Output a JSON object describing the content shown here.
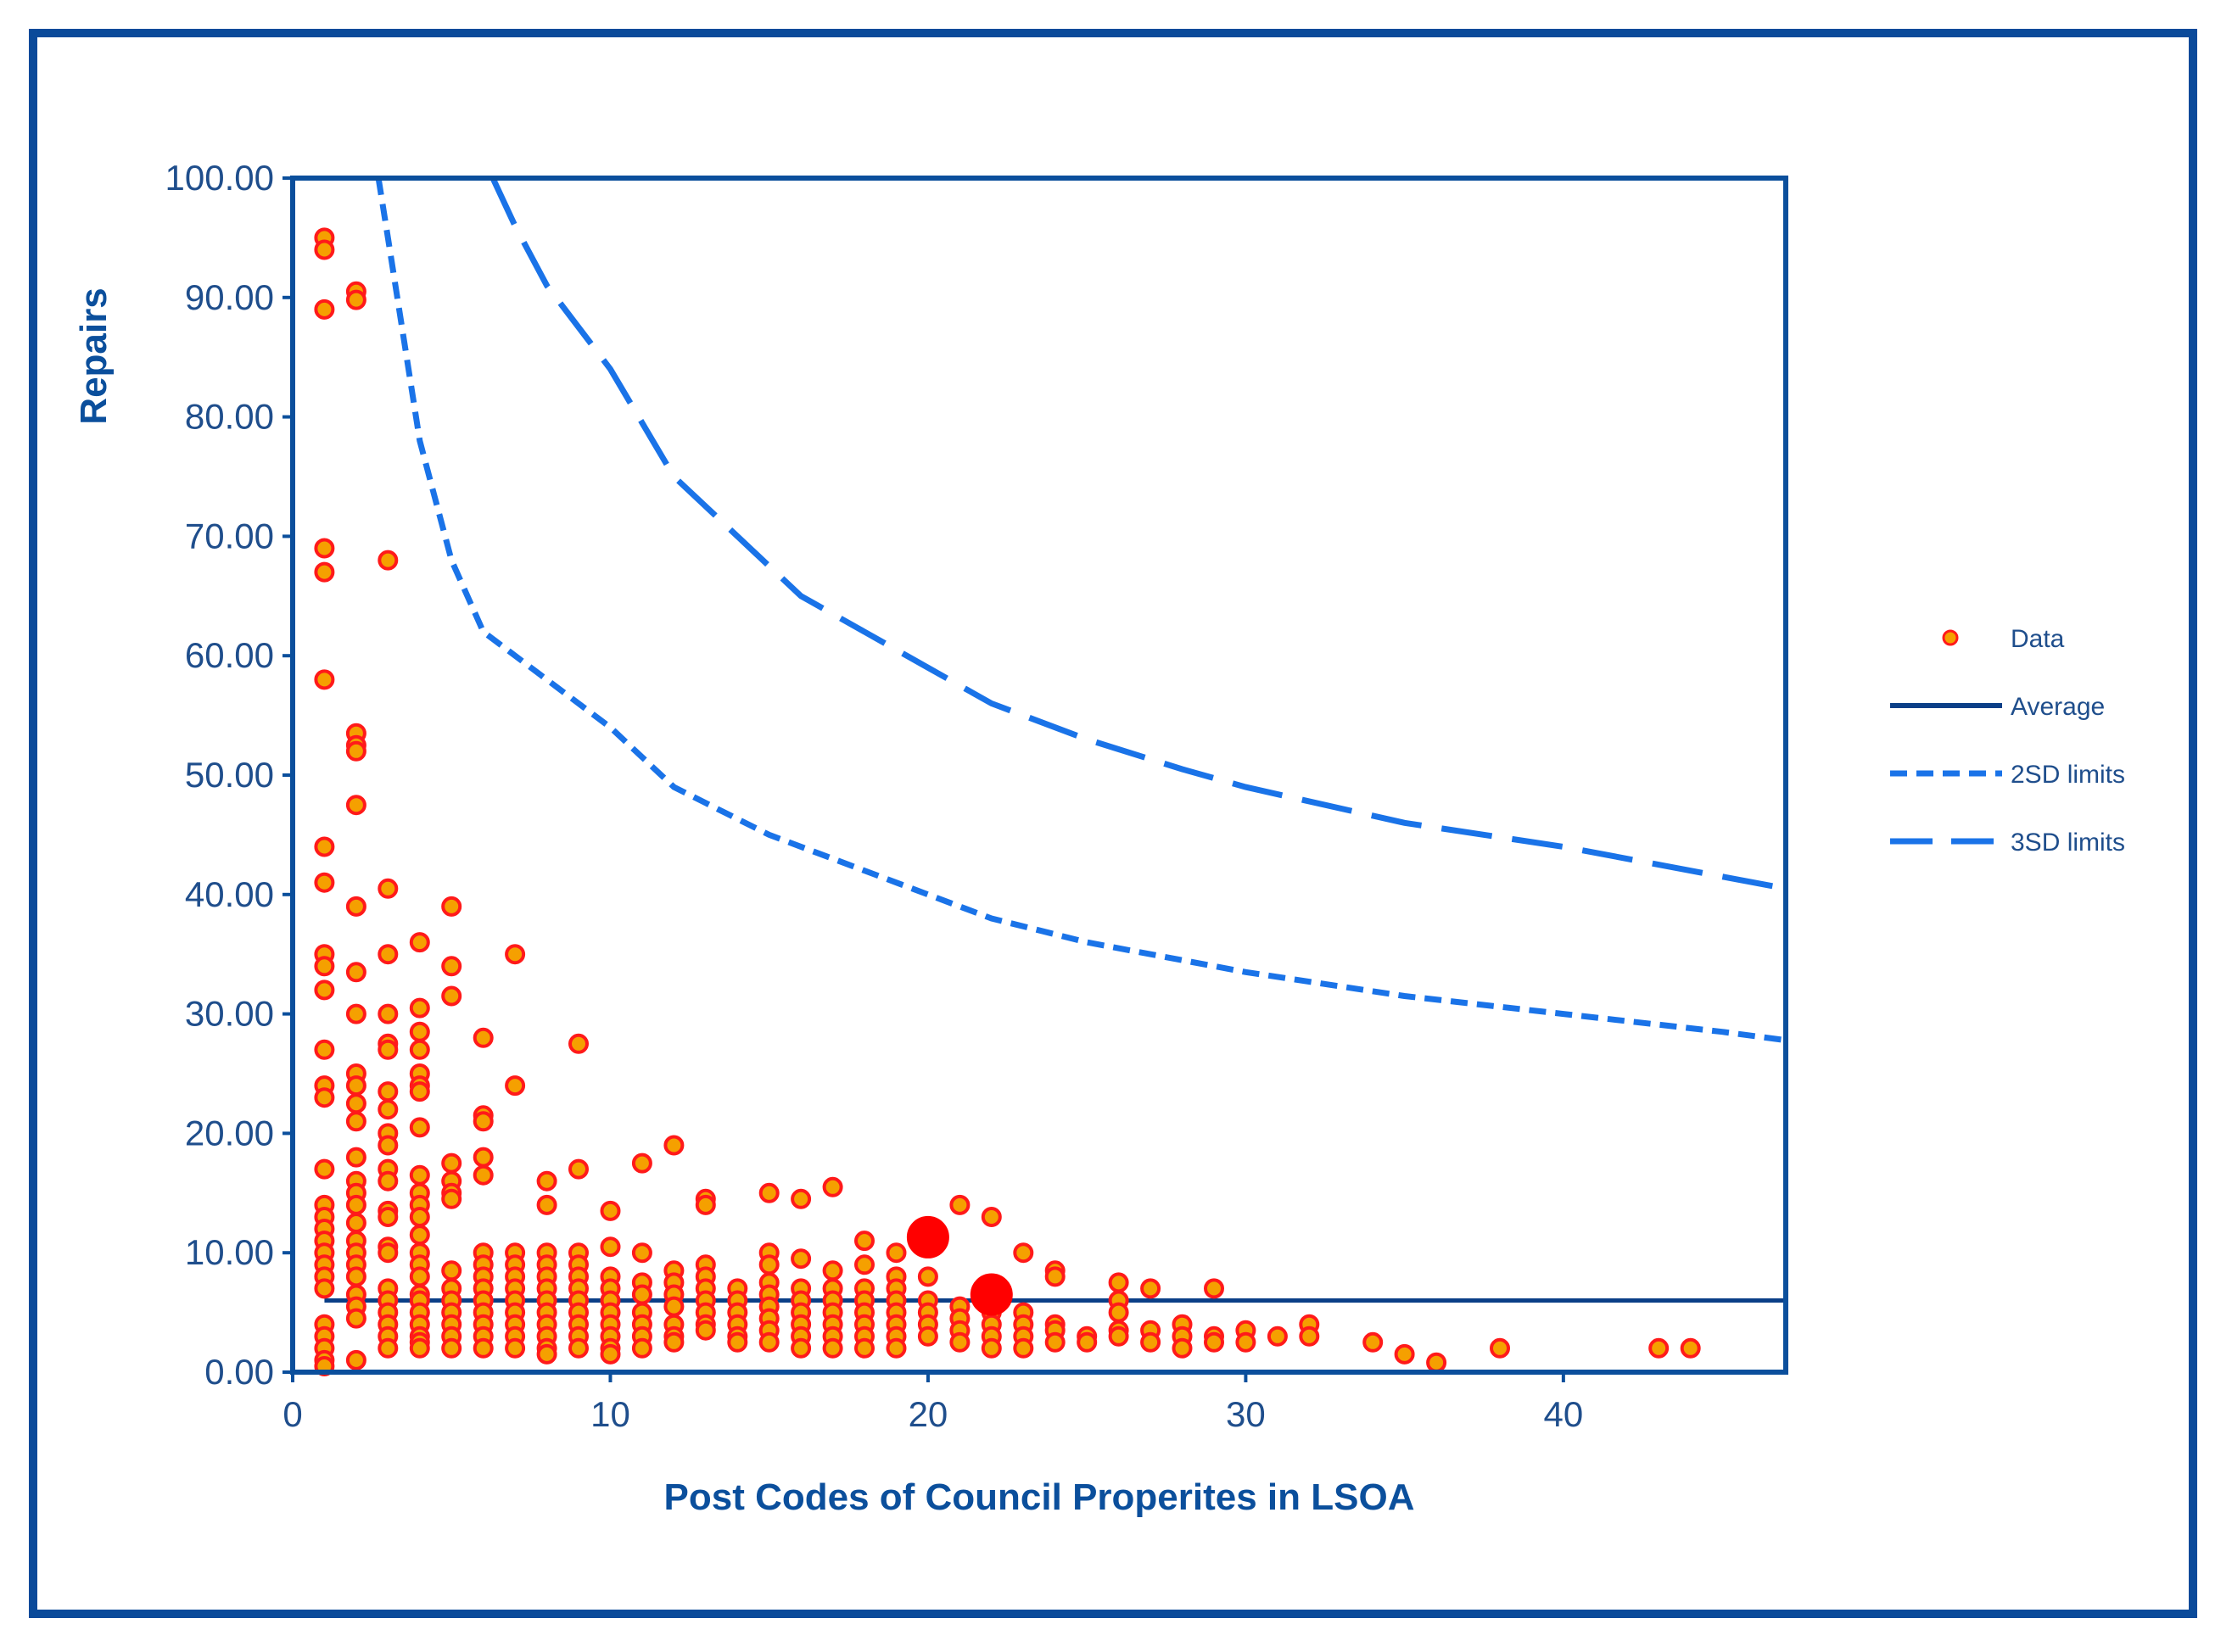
{
  "chart_data": {
    "type": "scatter",
    "title": "",
    "xlabel": "Post Codes of Council Properites in LSOA",
    "ylabel": "Repairs",
    "xlim": [
      0,
      47
    ],
    "ylim": [
      0,
      100
    ],
    "x_ticks": [
      0,
      10,
      20,
      30,
      40
    ],
    "x_tick_labels": [
      "0",
      "10",
      "20",
      "30",
      "40"
    ],
    "y_ticks": [
      0,
      10,
      20,
      30,
      40,
      50,
      60,
      70,
      80,
      90,
      100
    ],
    "y_tick_labels": [
      "0.00",
      "10.00",
      "20.00",
      "30.00",
      "40.00",
      "50.00",
      "60.00",
      "70.00",
      "80.00",
      "90.00",
      "100.00"
    ],
    "grid": false,
    "legend_position": "right",
    "colors": {
      "frame": "#0a4a9a",
      "axis": "#0b4f9c",
      "average": "#0b3f87",
      "limits": "#1a73e8",
      "point_fill": "#f5a000",
      "point_edge": "#ff1a1a",
      "highlight": "#ff0000"
    },
    "legend": [
      {
        "label": "Data",
        "style": "marker"
      },
      {
        "label": "Average",
        "style": "solid"
      },
      {
        "label": "2SD limits",
        "style": "short-dash"
      },
      {
        "label": "3SD limits",
        "style": "long-dash"
      }
    ],
    "average": 6.0,
    "limit_curves": {
      "2SD": [
        [
          2.7,
          100
        ],
        [
          3,
          95
        ],
        [
          4,
          78
        ],
        [
          5,
          68
        ],
        [
          6,
          62
        ],
        [
          8,
          58
        ],
        [
          10,
          54
        ],
        [
          12,
          49
        ],
        [
          15,
          45
        ],
        [
          18,
          42
        ],
        [
          20,
          40
        ],
        [
          22,
          38
        ],
        [
          25,
          36
        ],
        [
          30,
          33.5
        ],
        [
          35,
          31.5
        ],
        [
          40,
          30
        ],
        [
          45,
          28.5
        ],
        [
          47,
          27.8
        ]
      ],
      "3SD": [
        [
          6.3,
          100
        ],
        [
          7,
          96
        ],
        [
          8,
          91
        ],
        [
          10,
          84
        ],
        [
          12,
          75
        ],
        [
          14,
          70
        ],
        [
          16,
          65
        ],
        [
          18,
          62
        ],
        [
          20,
          59
        ],
        [
          22,
          56
        ],
        [
          25,
          53
        ],
        [
          28,
          50.5
        ],
        [
          30,
          49
        ],
        [
          35,
          46
        ],
        [
          40,
          44
        ],
        [
          45,
          41.5
        ],
        [
          47,
          40.5
        ]
      ]
    },
    "series": [
      {
        "name": "Data",
        "points": [
          [
            1,
            95
          ],
          [
            1,
            94
          ],
          [
            1,
            89
          ],
          [
            1,
            69
          ],
          [
            1,
            67
          ],
          [
            1,
            58
          ],
          [
            1,
            44
          ],
          [
            1,
            41
          ],
          [
            1,
            35
          ],
          [
            1,
            34
          ],
          [
            1,
            32
          ],
          [
            1,
            27
          ],
          [
            1,
            24
          ],
          [
            1,
            23
          ],
          [
            1,
            17
          ],
          [
            1,
            14
          ],
          [
            1,
            13
          ],
          [
            1,
            12
          ],
          [
            1,
            11
          ],
          [
            1,
            10
          ],
          [
            1,
            9
          ],
          [
            1,
            8
          ],
          [
            1,
            7
          ],
          [
            1,
            4
          ],
          [
            1,
            3
          ],
          [
            1,
            2
          ],
          [
            1,
            1
          ],
          [
            1,
            0.5
          ],
          [
            2,
            90.5
          ],
          [
            2,
            89.8
          ],
          [
            2,
            53.5
          ],
          [
            2,
            52.5
          ],
          [
            2,
            52
          ],
          [
            2,
            47.5
          ],
          [
            2,
            39
          ],
          [
            2,
            33.5
          ],
          [
            2,
            30
          ],
          [
            2,
            25
          ],
          [
            2,
            24
          ],
          [
            2,
            22.5
          ],
          [
            2,
            21
          ],
          [
            2,
            18
          ],
          [
            2,
            16
          ],
          [
            2,
            15
          ],
          [
            2,
            14
          ],
          [
            2,
            12.5
          ],
          [
            2,
            11
          ],
          [
            2,
            10
          ],
          [
            2,
            9
          ],
          [
            2,
            8
          ],
          [
            2,
            6.5
          ],
          [
            2,
            5.5
          ],
          [
            2,
            4.5
          ],
          [
            2,
            1
          ],
          [
            3,
            68
          ],
          [
            3,
            40.5
          ],
          [
            3,
            35
          ],
          [
            3,
            30
          ],
          [
            3,
            27.5
          ],
          [
            3,
            27
          ],
          [
            3,
            23.5
          ],
          [
            3,
            22
          ],
          [
            3,
            20
          ],
          [
            3,
            19
          ],
          [
            3,
            17
          ],
          [
            3,
            16
          ],
          [
            3,
            13.5
          ],
          [
            3,
            13
          ],
          [
            3,
            10.5
          ],
          [
            3,
            10
          ],
          [
            3,
            7
          ],
          [
            3,
            6
          ],
          [
            3,
            5
          ],
          [
            3,
            4
          ],
          [
            3,
            3
          ],
          [
            3,
            2
          ],
          [
            4,
            36
          ],
          [
            4,
            30.5
          ],
          [
            4,
            28.5
          ],
          [
            4,
            27
          ],
          [
            4,
            25
          ],
          [
            4,
            24
          ],
          [
            4,
            23.5
          ],
          [
            4,
            20.5
          ],
          [
            4,
            16.5
          ],
          [
            4,
            15
          ],
          [
            4,
            14
          ],
          [
            4,
            13
          ],
          [
            4,
            11.5
          ],
          [
            4,
            10
          ],
          [
            4,
            9
          ],
          [
            4,
            8
          ],
          [
            4,
            6.5
          ],
          [
            4,
            6
          ],
          [
            4,
            5
          ],
          [
            4,
            4
          ],
          [
            4,
            3
          ],
          [
            4,
            2.5
          ],
          [
            4,
            2
          ],
          [
            5,
            39
          ],
          [
            5,
            34
          ],
          [
            5,
            31.5
          ],
          [
            5,
            17.5
          ],
          [
            5,
            16
          ],
          [
            5,
            15
          ],
          [
            5,
            14.5
          ],
          [
            5,
            8.5
          ],
          [
            5,
            7
          ],
          [
            5,
            6
          ],
          [
            5,
            5
          ],
          [
            5,
            4
          ],
          [
            5,
            3
          ],
          [
            5,
            2
          ],
          [
            6,
            28
          ],
          [
            6,
            21.5
          ],
          [
            6,
            21
          ],
          [
            6,
            18
          ],
          [
            6,
            16.5
          ],
          [
            6,
            10
          ],
          [
            6,
            9
          ],
          [
            6,
            8
          ],
          [
            6,
            7
          ],
          [
            6,
            6
          ],
          [
            6,
            5
          ],
          [
            6,
            4
          ],
          [
            6,
            3
          ],
          [
            6,
            2
          ],
          [
            7,
            35
          ],
          [
            7,
            24
          ],
          [
            7,
            10
          ],
          [
            7,
            9
          ],
          [
            7,
            8
          ],
          [
            7,
            7
          ],
          [
            7,
            6
          ],
          [
            7,
            5
          ],
          [
            7,
            4
          ],
          [
            7,
            3
          ],
          [
            7,
            2
          ],
          [
            8,
            16
          ],
          [
            8,
            14
          ],
          [
            8,
            10
          ],
          [
            8,
            9
          ],
          [
            8,
            8
          ],
          [
            8,
            7
          ],
          [
            8,
            6
          ],
          [
            8,
            5
          ],
          [
            8,
            4
          ],
          [
            8,
            3
          ],
          [
            8,
            2
          ],
          [
            8,
            1.5
          ],
          [
            9,
            27.5
          ],
          [
            9,
            17
          ],
          [
            9,
            10
          ],
          [
            9,
            9
          ],
          [
            9,
            8
          ],
          [
            9,
            7
          ],
          [
            9,
            6
          ],
          [
            9,
            5
          ],
          [
            9,
            4
          ],
          [
            9,
            3
          ],
          [
            9,
            2
          ],
          [
            10,
            13.5
          ],
          [
            10,
            10.5
          ],
          [
            10,
            8
          ],
          [
            10,
            7
          ],
          [
            10,
            6
          ],
          [
            10,
            5
          ],
          [
            10,
            4
          ],
          [
            10,
            3
          ],
          [
            10,
            2
          ],
          [
            10,
            1.5
          ],
          [
            11,
            17.5
          ],
          [
            11,
            10
          ],
          [
            11,
            7.5
          ],
          [
            11,
            6.5
          ],
          [
            11,
            5
          ],
          [
            11,
            4
          ],
          [
            11,
            3
          ],
          [
            11,
            2
          ],
          [
            12,
            19
          ],
          [
            12,
            8.5
          ],
          [
            12,
            7.5
          ],
          [
            12,
            6.5
          ],
          [
            12,
            5.5
          ],
          [
            12,
            4
          ],
          [
            12,
            3
          ],
          [
            12,
            2.5
          ],
          [
            13,
            14.5
          ],
          [
            13,
            14
          ],
          [
            13,
            9
          ],
          [
            13,
            8
          ],
          [
            13,
            7
          ],
          [
            13,
            6
          ],
          [
            13,
            5
          ],
          [
            13,
            4
          ],
          [
            13,
            3.5
          ],
          [
            14,
            7
          ],
          [
            14,
            6
          ],
          [
            14,
            5
          ],
          [
            14,
            4
          ],
          [
            14,
            3
          ],
          [
            14,
            2.5
          ],
          [
            15,
            15
          ],
          [
            15,
            10
          ],
          [
            15,
            9
          ],
          [
            15,
            7.5
          ],
          [
            15,
            6.5
          ],
          [
            15,
            5.5
          ],
          [
            15,
            4.5
          ],
          [
            15,
            3.5
          ],
          [
            15,
            2.5
          ],
          [
            16,
            14.5
          ],
          [
            16,
            9.5
          ],
          [
            16,
            7
          ],
          [
            16,
            6
          ],
          [
            16,
            5
          ],
          [
            16,
            4
          ],
          [
            16,
            3
          ],
          [
            16,
            2
          ],
          [
            17,
            15.5
          ],
          [
            17,
            8.5
          ],
          [
            17,
            7
          ],
          [
            17,
            6
          ],
          [
            17,
            5
          ],
          [
            17,
            4
          ],
          [
            17,
            3
          ],
          [
            17,
            2
          ],
          [
            18,
            11
          ],
          [
            18,
            9
          ],
          [
            18,
            7
          ],
          [
            18,
            6
          ],
          [
            18,
            5
          ],
          [
            18,
            4
          ],
          [
            18,
            3
          ],
          [
            18,
            2
          ],
          [
            19,
            10
          ],
          [
            19,
            8
          ],
          [
            19,
            7
          ],
          [
            19,
            6
          ],
          [
            19,
            5
          ],
          [
            19,
            4
          ],
          [
            19,
            3
          ],
          [
            19,
            2
          ],
          [
            20,
            8
          ],
          [
            20,
            6
          ],
          [
            20,
            5
          ],
          [
            20,
            4
          ],
          [
            20,
            3
          ],
          [
            21,
            14
          ],
          [
            21,
            5.5
          ],
          [
            21,
            4.5
          ],
          [
            21,
            3.5
          ],
          [
            21,
            2.5
          ],
          [
            22,
            13
          ],
          [
            22,
            5
          ],
          [
            22,
            4
          ],
          [
            22,
            3
          ],
          [
            22,
            2
          ],
          [
            23,
            10
          ],
          [
            23,
            5
          ],
          [
            23,
            4
          ],
          [
            23,
            3
          ],
          [
            23,
            2
          ],
          [
            24,
            8.5
          ],
          [
            24,
            8
          ],
          [
            24,
            4
          ],
          [
            24,
            3.5
          ],
          [
            24,
            2.5
          ],
          [
            25,
            3
          ],
          [
            25,
            2.5
          ],
          [
            26,
            7.5
          ],
          [
            26,
            6
          ],
          [
            26,
            5
          ],
          [
            26,
            3.5
          ],
          [
            26,
            3
          ],
          [
            27,
            7
          ],
          [
            27,
            3.5
          ],
          [
            27,
            2.5
          ],
          [
            28,
            4
          ],
          [
            28,
            3
          ],
          [
            28,
            2
          ],
          [
            29,
            7
          ],
          [
            29,
            3
          ],
          [
            29,
            2.5
          ],
          [
            30,
            3.5
          ],
          [
            30,
            2.5
          ],
          [
            31,
            3
          ],
          [
            32,
            4
          ],
          [
            32,
            3
          ],
          [
            34,
            2.5
          ],
          [
            35,
            1.5
          ],
          [
            36,
            0.8
          ],
          [
            38,
            2
          ],
          [
            43,
            2
          ],
          [
            44,
            2
          ]
        ]
      },
      {
        "name": "Highlighted",
        "points": [
          [
            20,
            11.3
          ],
          [
            22,
            6.5
          ]
        ]
      }
    ]
  }
}
